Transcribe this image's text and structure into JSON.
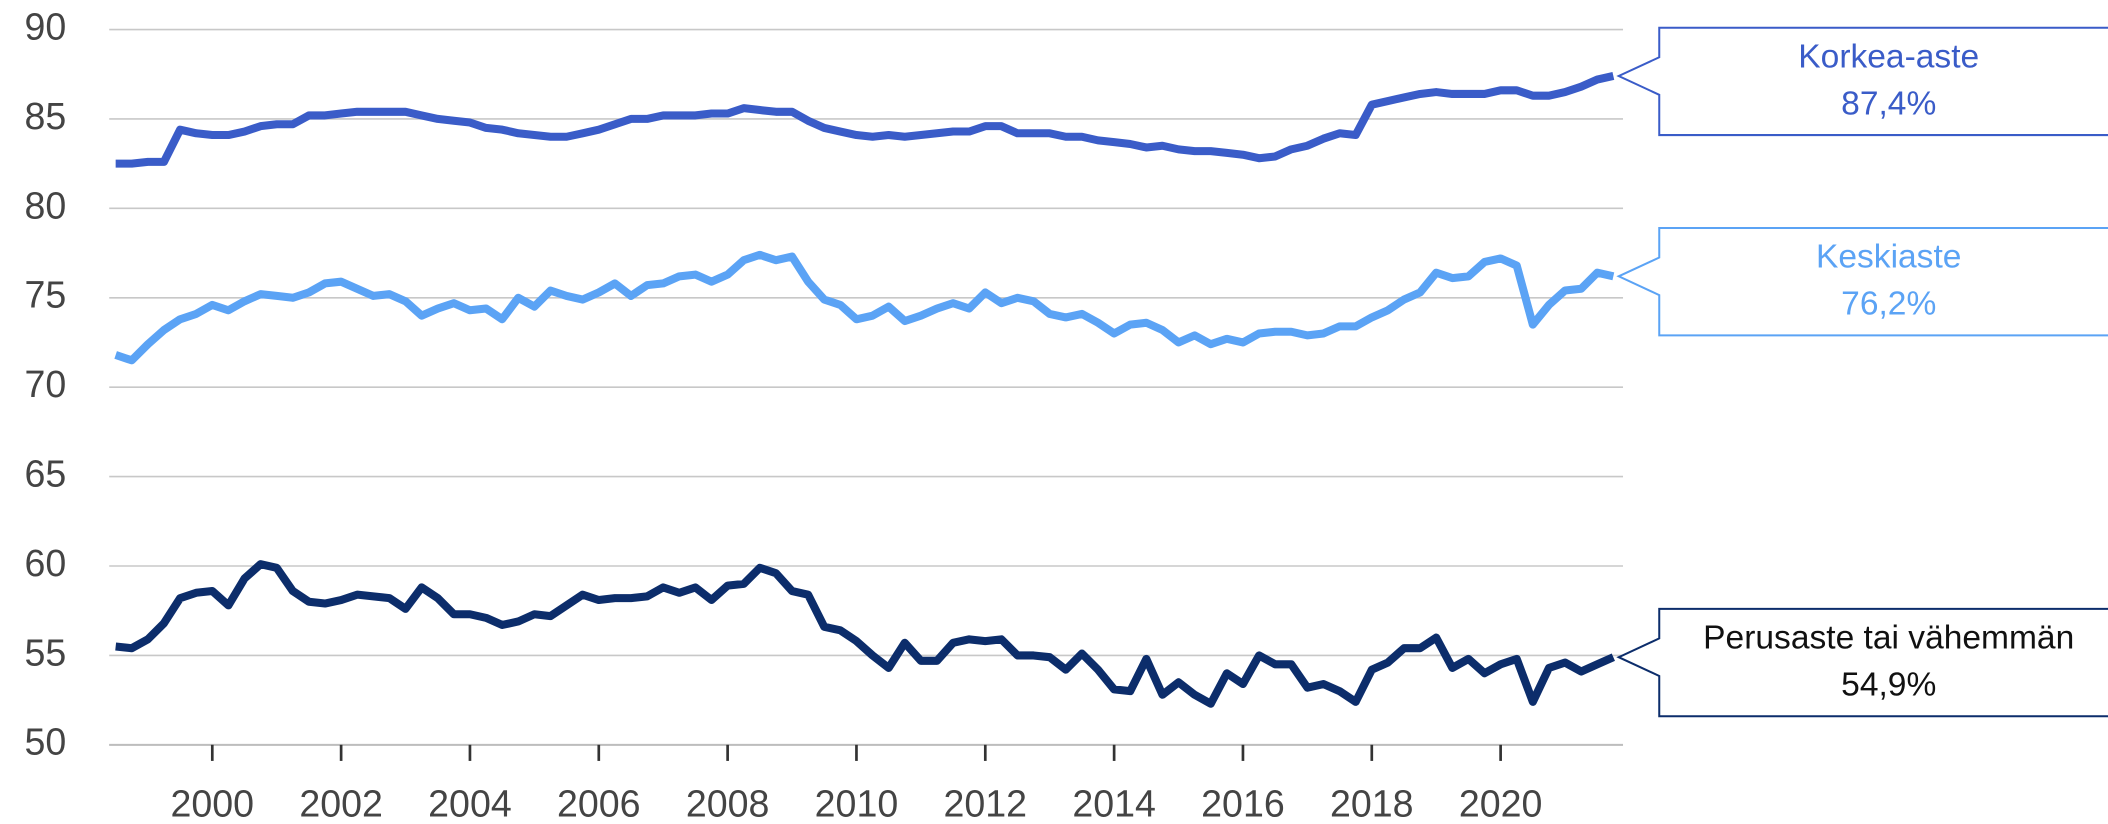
{
  "chart_data": {
    "type": "line",
    "x": [
      1998.5,
      1998.75,
      1999,
      1999.25,
      1999.5,
      1999.75,
      2000,
      2000.25,
      2000.5,
      2000.75,
      2001,
      2001.25,
      2001.5,
      2001.75,
      2002,
      2002.25,
      2002.5,
      2002.75,
      2003,
      2003.25,
      2003.5,
      2003.75,
      2004,
      2004.25,
      2004.5,
      2004.75,
      2005,
      2005.25,
      2005.5,
      2005.75,
      2006,
      2006.25,
      2006.5,
      2006.75,
      2007,
      2007.25,
      2007.5,
      2007.75,
      2008,
      2008.25,
      2008.5,
      2008.75,
      2009,
      2009.25,
      2009.5,
      2009.75,
      2010,
      2010.25,
      2010.5,
      2010.75,
      2011,
      2011.25,
      2011.5,
      2011.75,
      2012,
      2012.25,
      2012.5,
      2012.75,
      2013,
      2013.25,
      2013.5,
      2013.75,
      2014,
      2014.25,
      2014.5,
      2014.75,
      2015,
      2015.25,
      2015.5,
      2015.75,
      2016,
      2016.25,
      2016.5,
      2016.75,
      2017,
      2017.25,
      2017.5,
      2017.75,
      2018,
      2018.25,
      2018.5,
      2018.75,
      2019,
      2019.25,
      2019.5,
      2019.75,
      2020,
      2020.25,
      2020.5,
      2020.75,
      2021,
      2021.25,
      2021.5,
      2021.75
    ],
    "series": [
      {
        "name": "Korkea-aste",
        "color": "#3a5cc8",
        "label_color": "#3a5cc8",
        "last_label": "87,4%",
        "values": [
          82.5,
          82.5,
          82.6,
          82.6,
          84.4,
          84.2,
          84.1,
          84.1,
          84.3,
          84.6,
          84.7,
          84.7,
          85.2,
          85.2,
          85.3,
          85.4,
          85.4,
          85.4,
          85.4,
          85.2,
          85.0,
          84.9,
          84.8,
          84.5,
          84.4,
          84.2,
          84.1,
          84.0,
          84.0,
          84.2,
          84.4,
          84.7,
          85.0,
          85.0,
          85.2,
          85.2,
          85.2,
          85.3,
          85.3,
          85.6,
          85.5,
          85.4,
          85.4,
          84.9,
          84.5,
          84.3,
          84.1,
          84.0,
          84.1,
          84.0,
          84.1,
          84.2,
          84.3,
          84.3,
          84.6,
          84.6,
          84.2,
          84.2,
          84.2,
          84.0,
          84.0,
          83.8,
          83.7,
          83.6,
          83.4,
          83.5,
          83.3,
          83.2,
          83.2,
          83.1,
          83.0,
          82.8,
          82.9,
          83.3,
          83.5,
          83.9,
          84.2,
          84.1,
          85.8,
          86.0,
          86.2,
          86.4,
          86.5,
          86.4,
          86.4,
          86.4,
          86.6,
          86.6,
          86.3,
          86.3,
          86.5,
          86.8,
          87.2,
          87.4
        ]
      },
      {
        "name": "Keskiaste",
        "color": "#5ba3f5",
        "label_color": "#5ba3f5",
        "last_label": "76,2%",
        "values": [
          71.8,
          71.5,
          72.4,
          73.2,
          73.8,
          74.1,
          74.6,
          74.3,
          74.8,
          75.2,
          75.1,
          75.0,
          75.3,
          75.8,
          75.9,
          75.5,
          75.1,
          75.2,
          74.8,
          74.0,
          74.4,
          74.7,
          74.3,
          74.4,
          73.8,
          75.0,
          74.5,
          75.4,
          75.1,
          74.9,
          75.3,
          75.8,
          75.1,
          75.7,
          75.8,
          76.2,
          76.3,
          75.9,
          76.3,
          77.1,
          77.4,
          77.1,
          77.3,
          75.9,
          74.9,
          74.6,
          73.8,
          74.0,
          74.5,
          73.7,
          74.0,
          74.4,
          74.7,
          74.4,
          75.3,
          74.7,
          75.0,
          74.8,
          74.1,
          73.9,
          74.1,
          73.6,
          73.0,
          73.5,
          73.6,
          73.2,
          72.5,
          72.9,
          72.4,
          72.7,
          72.5,
          73.0,
          73.1,
          73.1,
          72.9,
          73.0,
          73.4,
          73.4,
          73.9,
          74.3,
          74.9,
          75.3,
          76.4,
          76.1,
          76.2,
          77.0,
          77.2,
          76.8,
          73.5,
          74.6,
          75.4,
          75.5,
          76.4,
          76.2
        ]
      },
      {
        "name": "Perusaste tai vähemmän",
        "color": "#0c2d6b",
        "label_color": "#111111",
        "last_label": "54,9%",
        "values": [
          55.5,
          55.4,
          55.9,
          56.8,
          58.2,
          58.5,
          58.6,
          57.8,
          59.3,
          60.1,
          59.9,
          58.6,
          58.0,
          57.9,
          58.1,
          58.4,
          58.3,
          58.2,
          57.6,
          58.8,
          58.2,
          57.3,
          57.3,
          57.1,
          56.7,
          56.9,
          57.3,
          57.2,
          57.8,
          58.4,
          58.1,
          58.2,
          58.2,
          58.3,
          58.8,
          58.5,
          58.8,
          58.1,
          58.9,
          59.0,
          59.9,
          59.6,
          58.6,
          58.4,
          56.6,
          56.4,
          55.8,
          55.0,
          54.3,
          55.7,
          54.7,
          54.7,
          55.7,
          55.9,
          55.8,
          55.9,
          55.0,
          55.0,
          54.9,
          54.2,
          55.1,
          54.2,
          53.1,
          53.0,
          54.8,
          52.8,
          53.5,
          52.8,
          52.3,
          54.0,
          53.4,
          55.0,
          54.5,
          54.5,
          53.2,
          53.4,
          53.0,
          52.4,
          54.2,
          54.6,
          55.4,
          55.4,
          56.0,
          54.3,
          54.8,
          54.0,
          54.5,
          54.8,
          52.4,
          54.3,
          54.6,
          54.1,
          54.5,
          54.9
        ]
      }
    ],
    "xlim": [
      1998.4,
      2021.9
    ],
    "xticks": [
      2000,
      2002,
      2004,
      2006,
      2008,
      2010,
      2012,
      2014,
      2016,
      2018,
      2020
    ],
    "ylim": [
      50,
      90
    ],
    "yticks": [
      50,
      55,
      60,
      65,
      70,
      75,
      80,
      85,
      90
    ],
    "grid": true
  }
}
